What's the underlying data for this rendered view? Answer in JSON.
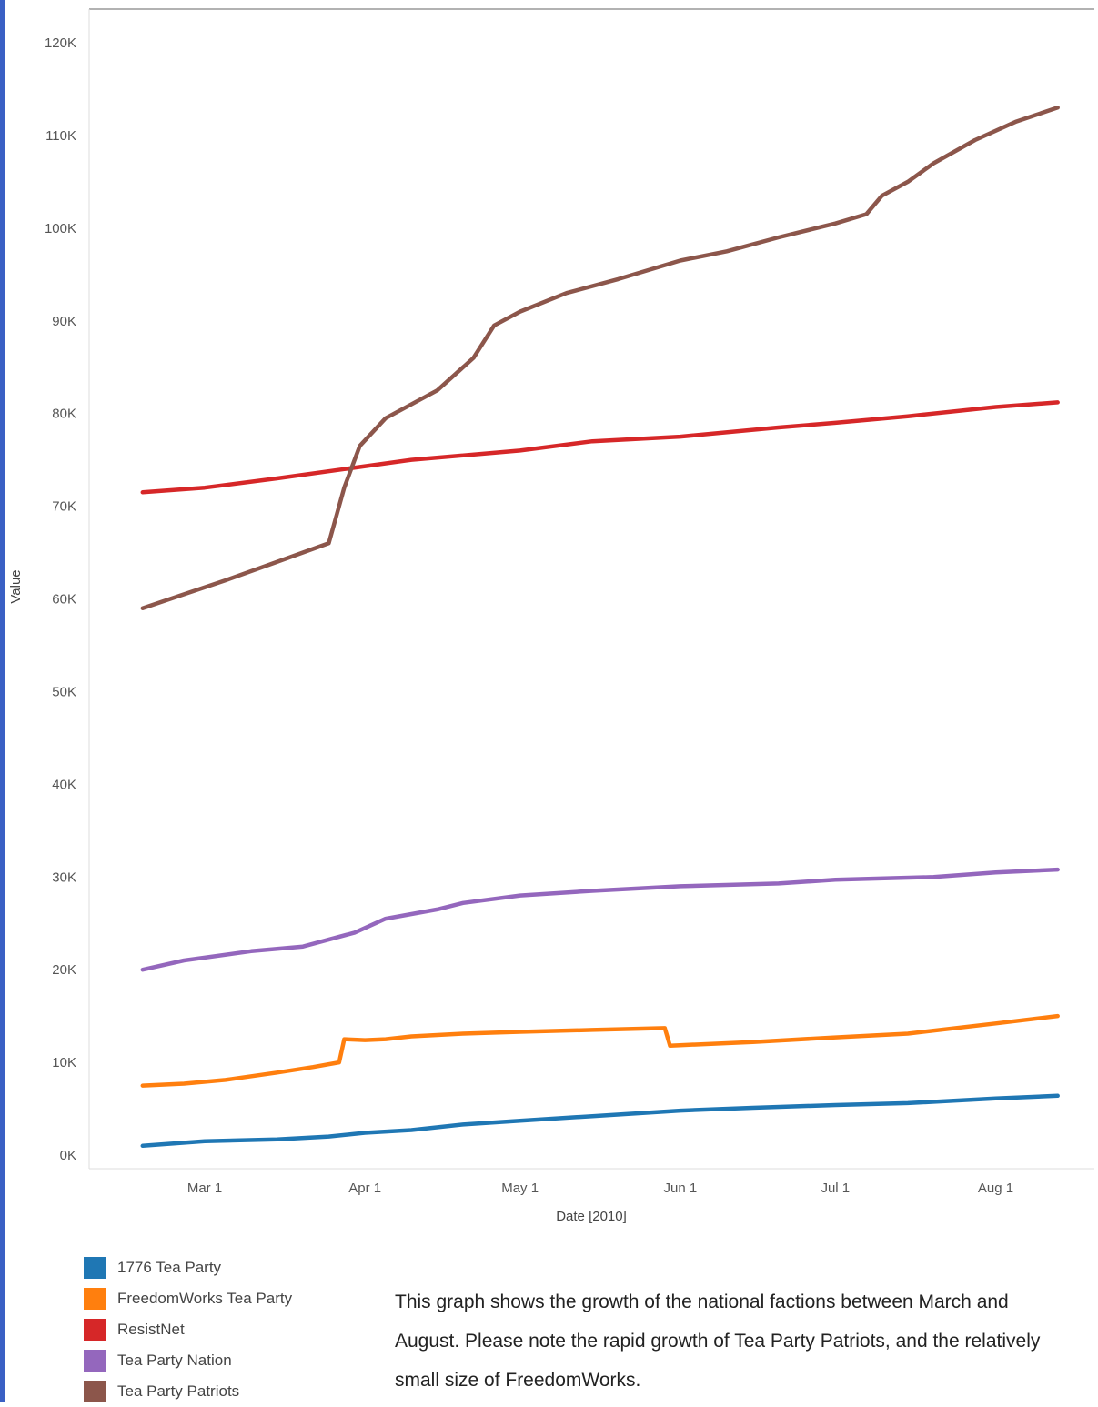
{
  "chart_data": {
    "type": "line",
    "title": "",
    "xlabel": "Date [2010]",
    "ylabel": "Value",
    "ylim": [
      0,
      120000
    ],
    "y_ticks": [
      {
        "value": 0,
        "label": "0K"
      },
      {
        "value": 10000,
        "label": "10K"
      },
      {
        "value": 20000,
        "label": "20K"
      },
      {
        "value": 30000,
        "label": "30K"
      },
      {
        "value": 40000,
        "label": "40K"
      },
      {
        "value": 50000,
        "label": "50K"
      },
      {
        "value": 60000,
        "label": "60K"
      },
      {
        "value": 70000,
        "label": "70K"
      },
      {
        "value": 80000,
        "label": "80K"
      },
      {
        "value": 90000,
        "label": "90K"
      },
      {
        "value": 100000,
        "label": "100K"
      },
      {
        "value": 110000,
        "label": "110K"
      },
      {
        "value": 120000,
        "label": "120K"
      }
    ],
    "xlim": [
      "2010-02-10",
      "2010-08-28"
    ],
    "x_ticks": [
      {
        "value": "2010-03-01",
        "label": "Mar 1"
      },
      {
        "value": "2010-04-01",
        "label": "Apr 1"
      },
      {
        "value": "2010-05-01",
        "label": "May 1"
      },
      {
        "value": "2010-06-01",
        "label": "Jun 1"
      },
      {
        "value": "2010-07-01",
        "label": "Jul 1"
      },
      {
        "value": "2010-08-01",
        "label": "Aug 1"
      }
    ],
    "grid": false,
    "legend_position": "bottom-left",
    "series": [
      {
        "name": "1776 Tea Party",
        "color": "#1f77b4",
        "points": [
          [
            "2010-02-17",
            1000
          ],
          [
            "2010-03-01",
            1500
          ],
          [
            "2010-03-15",
            1700
          ],
          [
            "2010-03-25",
            2000
          ],
          [
            "2010-04-01",
            2400
          ],
          [
            "2010-04-10",
            2700
          ],
          [
            "2010-04-20",
            3300
          ],
          [
            "2010-05-01",
            3700
          ],
          [
            "2010-05-15",
            4200
          ],
          [
            "2010-06-01",
            4800
          ],
          [
            "2010-06-15",
            5100
          ],
          [
            "2010-07-01",
            5400
          ],
          [
            "2010-07-15",
            5600
          ],
          [
            "2010-08-01",
            6100
          ],
          [
            "2010-08-13",
            6400
          ]
        ]
      },
      {
        "name": "FreedomWorks Tea Party",
        "color": "#ff7f0e",
        "points": [
          [
            "2010-02-17",
            7500
          ],
          [
            "2010-02-25",
            7700
          ],
          [
            "2010-03-05",
            8100
          ],
          [
            "2010-03-15",
            8900
          ],
          [
            "2010-03-22",
            9500
          ],
          [
            "2010-03-27",
            10000
          ],
          [
            "2010-03-28",
            12500
          ],
          [
            "2010-04-01",
            12400
          ],
          [
            "2010-04-05",
            12500
          ],
          [
            "2010-04-10",
            12800
          ],
          [
            "2010-04-20",
            13100
          ],
          [
            "2010-05-01",
            13300
          ],
          [
            "2010-05-15",
            13500
          ],
          [
            "2010-05-29",
            13700
          ],
          [
            "2010-05-30",
            11800
          ],
          [
            "2010-06-15",
            12200
          ],
          [
            "2010-07-01",
            12700
          ],
          [
            "2010-07-15",
            13100
          ],
          [
            "2010-08-01",
            14200
          ],
          [
            "2010-08-13",
            15000
          ]
        ]
      },
      {
        "name": "ResistNet",
        "color": "#d62728",
        "points": [
          [
            "2010-02-17",
            71500
          ],
          [
            "2010-03-01",
            72000
          ],
          [
            "2010-03-15",
            73000
          ],
          [
            "2010-03-28",
            74000
          ],
          [
            "2010-04-10",
            75000
          ],
          [
            "2010-05-01",
            76000
          ],
          [
            "2010-05-15",
            77000
          ],
          [
            "2010-06-01",
            77500
          ],
          [
            "2010-06-20",
            78500
          ],
          [
            "2010-07-01",
            79000
          ],
          [
            "2010-07-15",
            79700
          ],
          [
            "2010-08-01",
            80700
          ],
          [
            "2010-08-13",
            81200
          ]
        ]
      },
      {
        "name": "Tea Party Nation",
        "color": "#9467bd",
        "points": [
          [
            "2010-02-17",
            20000
          ],
          [
            "2010-02-25",
            21000
          ],
          [
            "2010-03-10",
            22000
          ],
          [
            "2010-03-20",
            22500
          ],
          [
            "2010-03-30",
            24000
          ],
          [
            "2010-04-05",
            25500
          ],
          [
            "2010-04-15",
            26500
          ],
          [
            "2010-04-20",
            27200
          ],
          [
            "2010-05-01",
            28000
          ],
          [
            "2010-05-15",
            28500
          ],
          [
            "2010-06-01",
            29000
          ],
          [
            "2010-06-20",
            29300
          ],
          [
            "2010-07-01",
            29700
          ],
          [
            "2010-07-20",
            30000
          ],
          [
            "2010-08-01",
            30500
          ],
          [
            "2010-08-13",
            30800
          ]
        ]
      },
      {
        "name": "Tea Party Patriots",
        "color": "#8c564b",
        "points": [
          [
            "2010-02-17",
            59000
          ],
          [
            "2010-02-25",
            60500
          ],
          [
            "2010-03-05",
            62000
          ],
          [
            "2010-03-15",
            64000
          ],
          [
            "2010-03-25",
            66000
          ],
          [
            "2010-03-28",
            72000
          ],
          [
            "2010-03-31",
            76500
          ],
          [
            "2010-04-05",
            79500
          ],
          [
            "2010-04-15",
            82500
          ],
          [
            "2010-04-22",
            86000
          ],
          [
            "2010-04-26",
            89500
          ],
          [
            "2010-05-01",
            91000
          ],
          [
            "2010-05-10",
            93000
          ],
          [
            "2010-05-20",
            94500
          ],
          [
            "2010-06-01",
            96500
          ],
          [
            "2010-06-10",
            97500
          ],
          [
            "2010-06-20",
            99000
          ],
          [
            "2010-07-01",
            100500
          ],
          [
            "2010-07-07",
            101500
          ],
          [
            "2010-07-10",
            103500
          ],
          [
            "2010-07-15",
            105000
          ],
          [
            "2010-07-20",
            107000
          ],
          [
            "2010-07-28",
            109500
          ],
          [
            "2010-08-05",
            111500
          ],
          [
            "2010-08-13",
            113000
          ]
        ]
      }
    ]
  },
  "caption": "This graph shows the growth of the national factions between March and August. Please note the rapid growth of Tea Party Patriots, and the relatively small size of FreedomWorks."
}
